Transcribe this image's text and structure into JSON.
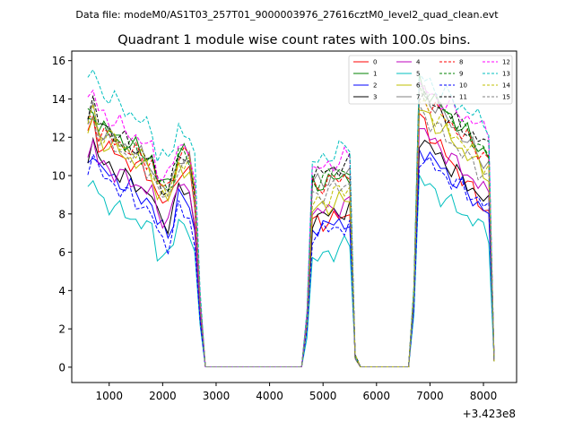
{
  "chart_data": {
    "type": "line",
    "suptitle": "Data file: modeM0/AS1T03_257T01_9000003976_27616cztM0_level2_quad_clean.evt",
    "title": "Quadrant 1 module wise count rates with 100.0s bins.",
    "xlabel": "",
    "ylabel": "",
    "x_offset_label": "+3.423e8",
    "xlim": [
      300,
      8620
    ],
    "ylim": [
      -0.8,
      16.5
    ],
    "xticks": [
      1000,
      2000,
      3000,
      4000,
      5000,
      6000,
      7000,
      8000
    ],
    "yticks": [
      0,
      2,
      4,
      6,
      8,
      10,
      12,
      14,
      16
    ],
    "legend_position": "top-right",
    "active_segments": [
      {
        "start": 600,
        "end": 2600,
        "drop": [
          2700,
          2800
        ]
      },
      {
        "start": 4800,
        "end": 5500,
        "rise": [
          4700
        ],
        "drop": [
          5600,
          5700
        ]
      },
      {
        "start": 6800,
        "end": 8100,
        "rise": [
          6700
        ],
        "drop": [
          8200
        ]
      }
    ],
    "series": [
      {
        "name": "0",
        "color": "#ff0000",
        "dash": "solid",
        "segment_levels": [
          [
            12.1,
            8.5
          ],
          [
            7.5,
            7.9
          ],
          [
            13.0,
            8.0
          ]
        ]
      },
      {
        "name": "1",
        "color": "#008000",
        "dash": "solid",
        "segment_levels": [
          [
            13.0,
            9.5
          ],
          [
            9.5,
            10.0
          ],
          [
            14.8,
            11.0
          ]
        ]
      },
      {
        "name": "2",
        "color": "#0000ff",
        "dash": "solid",
        "segment_levels": [
          [
            10.8,
            7.0
          ],
          [
            7.3,
            7.6
          ],
          [
            11.5,
            8.0
          ]
        ]
      },
      {
        "name": "3",
        "color": "#000000",
        "dash": "solid",
        "segment_levels": [
          [
            11.2,
            7.5
          ],
          [
            7.8,
            8.2
          ],
          [
            12.0,
            8.5
          ]
        ]
      },
      {
        "name": "4",
        "color": "#bf00bf",
        "dash": "solid",
        "segment_levels": [
          [
            11.0,
            7.8
          ],
          [
            8.0,
            8.5
          ],
          [
            12.5,
            9.0
          ]
        ]
      },
      {
        "name": "5",
        "color": "#00bfbf",
        "dash": "solid",
        "segment_levels": [
          [
            9.2,
            5.8
          ],
          [
            5.5,
            6.5
          ],
          [
            9.8,
            7.0
          ]
        ]
      },
      {
        "name": "6",
        "color": "#bfbf00",
        "dash": "solid",
        "segment_levels": [
          [
            12.3,
            8.7
          ],
          [
            8.2,
            8.8
          ],
          [
            13.5,
            10.0
          ]
        ]
      },
      {
        "name": "7",
        "color": "#808080",
        "dash": "solid",
        "segment_levels": [
          [
            12.8,
            9.2
          ],
          [
            9.6,
            10.3
          ],
          [
            14.6,
            10.5
          ]
        ]
      },
      {
        "name": "8",
        "color": "#ff0000",
        "dash": "dashed",
        "segment_levels": [
          [
            12.6,
            9.4
          ],
          [
            9.4,
            10.0
          ],
          [
            14.3,
            10.8
          ]
        ]
      },
      {
        "name": "9",
        "color": "#008000",
        "dash": "dashed",
        "segment_levels": [
          [
            12.9,
            9.3
          ],
          [
            9.7,
            10.4
          ],
          [
            14.7,
            11.1
          ]
        ]
      },
      {
        "name": "10",
        "color": "#0000ff",
        "dash": "dashed",
        "segment_levels": [
          [
            10.6,
            6.3
          ],
          [
            7.0,
            7.4
          ],
          [
            11.0,
            8.3
          ]
        ]
      },
      {
        "name": "11",
        "color": "#000000",
        "dash": "dashed",
        "segment_levels": [
          [
            13.2,
            9.2
          ],
          [
            10.0,
            10.6
          ],
          [
            14.2,
            11.5
          ]
        ]
      },
      {
        "name": "12",
        "color": "#ff00ff",
        "dash": "dashed",
        "segment_levels": [
          [
            13.8,
            9.8
          ],
          [
            10.2,
            11.0
          ],
          [
            14.6,
            12.3
          ]
        ]
      },
      {
        "name": "13",
        "color": "#00bfbf",
        "dash": "dashed",
        "segment_levels": [
          [
            15.0,
            10.6
          ],
          [
            10.6,
            11.6
          ],
          [
            15.2,
            12.6
          ]
        ]
      },
      {
        "name": "14",
        "color": "#bfbf00",
        "dash": "dashed",
        "segment_levels": [
          [
            12.8,
            9.0
          ],
          [
            8.5,
            9.4
          ],
          [
            13.9,
            10.4
          ]
        ]
      },
      {
        "name": "15",
        "color": "#808080",
        "dash": "dashed",
        "segment_levels": [
          [
            12.4,
            8.8
          ],
          [
            8.9,
            9.6
          ],
          [
            13.4,
            9.8
          ]
        ]
      }
    ]
  }
}
